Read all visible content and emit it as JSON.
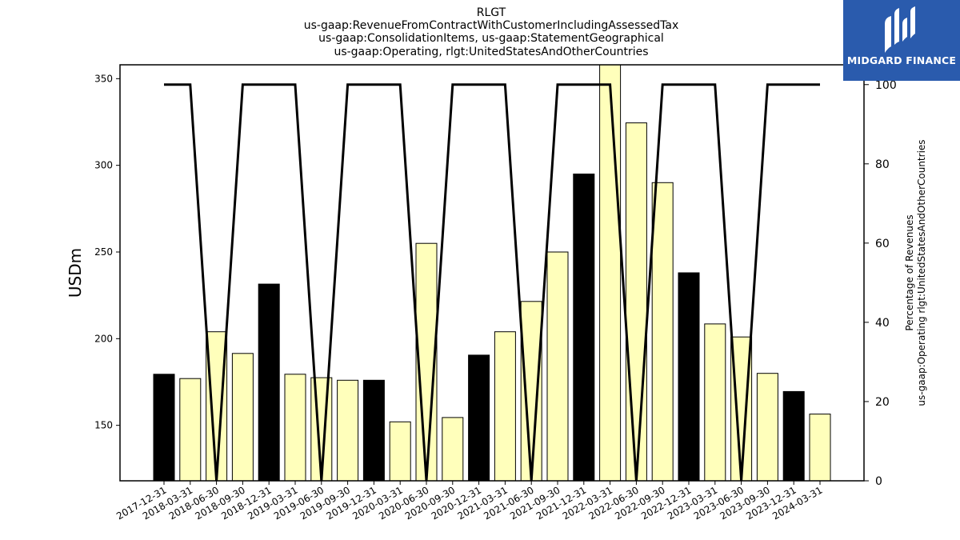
{
  "chart_data": {
    "type": "bar",
    "title": [
      "RLGT",
      "us-gaap:RevenueFromContractWithCustomerIncludingAssessedTax",
      "us-gaap:ConsolidationItems, us-gaap:StatementGeographical",
      "us-gaap:Operating, rlgt:UnitedStatesAndOtherCountries"
    ],
    "ylabel": "USDm",
    "ylabel_right": [
      "Percentage of Revenues",
      "us-gaap:Operating rlgt:UnitedStatesAndOtherCountries"
    ],
    "categories": [
      "2017-12-31",
      "2018-03-31",
      "2018-06-30",
      "2018-09-30",
      "2018-12-31",
      "2019-03-31",
      "2019-06-30",
      "2019-09-30",
      "2019-12-31",
      "2020-03-31",
      "2020-06-30",
      "2020-09-30",
      "2020-12-31",
      "2021-03-31",
      "2021-06-30",
      "2021-09-30",
      "2021-12-31",
      "2022-03-31",
      "2022-06-30",
      "2022-09-30",
      "2022-12-31",
      "2023-03-31",
      "2023-06-30",
      "2023-09-30",
      "2023-12-31",
      "2024-03-31"
    ],
    "values": [
      179.5,
      177,
      204,
      191.5,
      231.5,
      179.5,
      177.5,
      176,
      176,
      152,
      255,
      154.5,
      190.5,
      204,
      221.5,
      250,
      295,
      360,
      324.5,
      290,
      238,
      208.5,
      201,
      180,
      169.5,
      156.5
    ],
    "bar_fill": [
      "#000000",
      "#ffffbb",
      "#ffffbb",
      "#ffffbb",
      "#000000",
      "#ffffbb",
      "#ffffbb",
      "#ffffbb",
      "#000000",
      "#ffffbb",
      "#ffffbb",
      "#ffffbb",
      "#000000",
      "#ffffbb",
      "#ffffbb",
      "#ffffbb",
      "#000000",
      "#ffffbb",
      "#ffffbb",
      "#ffffbb",
      "#000000",
      "#ffffbb",
      "#ffffbb",
      "#ffffbb",
      "#000000",
      "#ffffbb"
    ],
    "percentage": [
      100,
      100,
      0,
      100,
      100,
      100,
      0,
      100,
      100,
      100,
      0,
      100,
      100,
      100,
      0,
      100,
      100,
      100,
      0,
      100,
      100,
      100,
      0,
      100,
      100,
      100
    ],
    "ylim": [
      118,
      358
    ],
    "yticks": [
      150,
      200,
      250,
      300,
      350
    ],
    "ylim_right": [
      0,
      105
    ],
    "yticks_right": [
      0,
      20,
      40,
      60,
      80,
      100
    ],
    "colors": {
      "highlight_bar": "#000000",
      "regular_bar": "#ffffbb",
      "line": "#000000"
    }
  },
  "logo": {
    "text": "MIDGARD FINANCE",
    "icon": "midgard-logo-icon"
  }
}
